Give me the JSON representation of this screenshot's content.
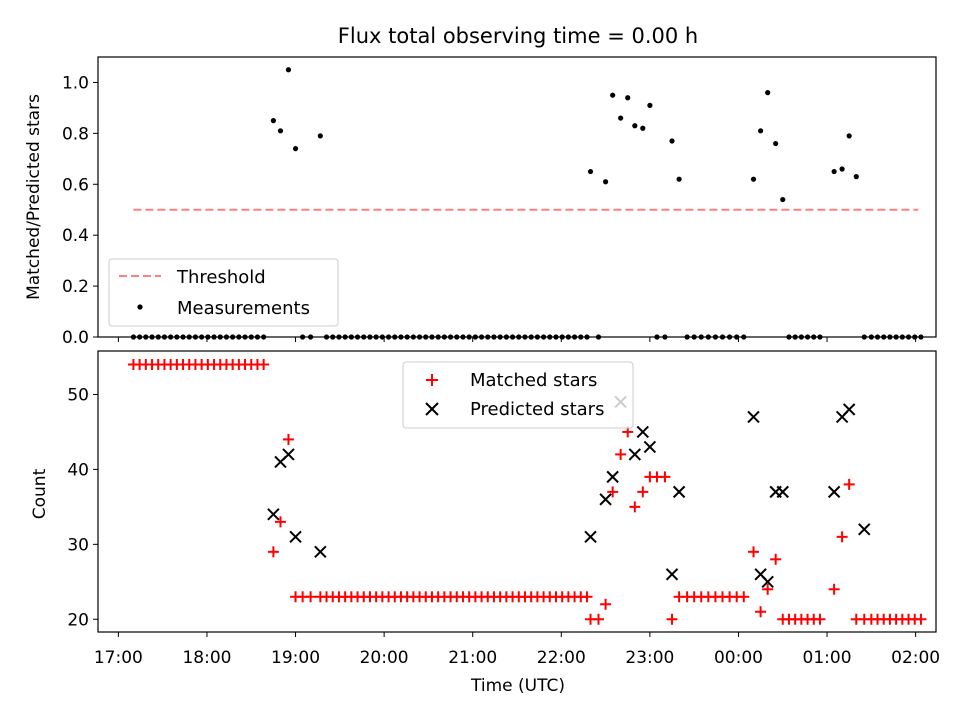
{
  "title": "Flux total observing time = 0.00 h",
  "chart_data": [
    {
      "type": "scatter",
      "ylabel": "Matched/Predicted stars",
      "ylim": [
        0,
        1.1
      ],
      "yticks": [
        0.0,
        0.2,
        0.4,
        0.6,
        0.8,
        1.0
      ],
      "ytick_labels": [
        "0.0",
        "0.2",
        "0.4",
        "0.6",
        "0.8",
        "1.0"
      ],
      "xlim": [
        -0.23,
        9.23
      ],
      "grid": false,
      "legend_position": "lower-left",
      "threshold": {
        "name": "Threshold",
        "value": 0.5,
        "x": [
          0.17,
          9.03
        ],
        "color": "#ff7f7f",
        "style": "dashed"
      },
      "series": [
        {
          "name": "Measurements",
          "color": "#000000",
          "marker": "dot",
          "x": [
            0.17,
            0.24,
            0.31,
            0.38,
            0.45,
            0.52,
            0.59,
            0.66,
            0.73,
            0.8,
            0.87,
            0.94,
            1.01,
            1.08,
            1.15,
            1.22,
            1.29,
            1.36,
            1.43,
            1.5,
            1.57,
            1.64,
            1.75,
            1.83,
            1.92,
            2.0,
            2.08,
            2.17,
            2.28,
            2.35,
            2.42,
            2.49,
            2.56,
            2.63,
            2.7,
            2.77,
            2.84,
            2.91,
            2.98,
            3.05,
            3.12,
            3.19,
            3.26,
            3.33,
            3.4,
            3.47,
            3.54,
            3.61,
            3.68,
            3.75,
            3.82,
            3.89,
            3.96,
            4.03,
            4.1,
            4.17,
            4.24,
            4.31,
            4.38,
            4.45,
            4.52,
            4.59,
            4.66,
            4.73,
            4.8,
            4.87,
            4.94,
            5.01,
            5.08,
            5.15,
            5.22,
            5.29,
            5.33,
            5.42,
            5.5,
            5.58,
            5.67,
            5.75,
            5.83,
            5.92,
            6.0,
            6.08,
            6.17,
            6.25,
            6.33,
            6.42,
            6.5,
            6.58,
            6.66,
            6.74,
            6.82,
            6.9,
            6.98,
            7.06,
            7.17,
            7.25,
            7.33,
            7.42,
            7.5,
            7.57,
            7.64,
            7.71,
            7.78,
            7.85,
            7.92,
            8.08,
            8.17,
            8.25,
            8.33,
            8.42,
            8.5,
            8.57,
            8.64,
            8.71,
            8.78,
            8.85,
            8.92,
            8.99,
            9.06
          ],
          "y": [
            0,
            0,
            0,
            0,
            0,
            0,
            0,
            0,
            0,
            0,
            0,
            0,
            0,
            0,
            0,
            0,
            0,
            0,
            0,
            0,
            0,
            0,
            0.85,
            0.81,
            1.05,
            0.74,
            0,
            0,
            0.79,
            0,
            0,
            0,
            0,
            0,
            0,
            0,
            0,
            0,
            0,
            0,
            0,
            0,
            0,
            0,
            0,
            0,
            0,
            0,
            0,
            0,
            0,
            0,
            0,
            0,
            0,
            0,
            0,
            0,
            0,
            0,
            0,
            0,
            0,
            0,
            0,
            0,
            0,
            0,
            0,
            0,
            0,
            0,
            0.65,
            0,
            0.61,
            0.95,
            0.86,
            0.94,
            0.83,
            0.82,
            0.91,
            0,
            0,
            0.77,
            0.62,
            0,
            0,
            0,
            0,
            0,
            0,
            0,
            0,
            0,
            0.62,
            0.81,
            0.96,
            0.76,
            0.54,
            0,
            0,
            0,
            0,
            0,
            0,
            0.65,
            0.66,
            0.79,
            0.63,
            0,
            0,
            0,
            0,
            0,
            0,
            0,
            0,
            0,
            0
          ]
        }
      ]
    },
    {
      "type": "scatter",
      "xlabel": "Time (UTC)",
      "ylabel": "Count",
      "ylim": [
        18.3,
        55.8
      ],
      "yticks": [
        20,
        30,
        40,
        50
      ],
      "ytick_labels": [
        "20",
        "30",
        "40",
        "50"
      ],
      "xlim": [
        -0.23,
        9.23
      ],
      "xticks": [
        0,
        1,
        2,
        3,
        4,
        5,
        6,
        7,
        8,
        9
      ],
      "xtick_labels": [
        "17:00",
        "18:00",
        "19:00",
        "20:00",
        "21:00",
        "22:00",
        "23:00",
        "00:00",
        "01:00",
        "02:00"
      ],
      "grid": false,
      "legend_position": "upper-center",
      "series": [
        {
          "name": "Matched stars",
          "color": "#ff0000",
          "marker": "plus",
          "x": [
            0.17,
            0.24,
            0.31,
            0.38,
            0.45,
            0.52,
            0.59,
            0.66,
            0.73,
            0.8,
            0.87,
            0.94,
            1.01,
            1.08,
            1.15,
            1.22,
            1.29,
            1.36,
            1.43,
            1.5,
            1.57,
            1.64,
            1.75,
            1.83,
            1.92,
            2.0,
            2.08,
            2.17,
            2.28,
            2.35,
            2.42,
            2.49,
            2.56,
            2.63,
            2.7,
            2.77,
            2.84,
            2.91,
            2.98,
            3.05,
            3.12,
            3.19,
            3.26,
            3.33,
            3.4,
            3.47,
            3.54,
            3.61,
            3.68,
            3.75,
            3.82,
            3.89,
            3.96,
            4.03,
            4.1,
            4.17,
            4.24,
            4.31,
            4.38,
            4.45,
            4.52,
            4.59,
            4.66,
            4.73,
            4.8,
            4.87,
            4.94,
            5.01,
            5.08,
            5.15,
            5.22,
            5.29,
            5.33,
            5.42,
            5.5,
            5.58,
            5.67,
            5.75,
            5.83,
            5.92,
            6.0,
            6.08,
            6.17,
            6.25,
            6.33,
            6.42,
            6.5,
            6.58,
            6.66,
            6.74,
            6.82,
            6.9,
            6.98,
            7.06,
            7.17,
            7.25,
            7.33,
            7.42,
            7.5,
            7.57,
            7.64,
            7.71,
            7.78,
            7.85,
            7.92,
            8.08,
            8.17,
            8.25,
            8.33,
            8.42,
            8.5,
            8.57,
            8.64,
            8.71,
            8.78,
            8.85,
            8.92,
            8.99,
            9.06
          ],
          "y": [
            54,
            54,
            54,
            54,
            54,
            54,
            54,
            54,
            54,
            54,
            54,
            54,
            54,
            54,
            54,
            54,
            54,
            54,
            54,
            54,
            54,
            54,
            29,
            33,
            44,
            23,
            23,
            23,
            23,
            23,
            23,
            23,
            23,
            23,
            23,
            23,
            23,
            23,
            23,
            23,
            23,
            23,
            23,
            23,
            23,
            23,
            23,
            23,
            23,
            23,
            23,
            23,
            23,
            23,
            23,
            23,
            23,
            23,
            23,
            23,
            23,
            23,
            23,
            23,
            23,
            23,
            23,
            23,
            23,
            23,
            23,
            23,
            20,
            20,
            22,
            37,
            42,
            45,
            35,
            37,
            39,
            39,
            39,
            20,
            23,
            23,
            23,
            23,
            23,
            23,
            23,
            23,
            23,
            23,
            29,
            21,
            24,
            28,
            20,
            20,
            20,
            20,
            20,
            20,
            20,
            24,
            31,
            38,
            20,
            20,
            20,
            20,
            20,
            20,
            20,
            20,
            20,
            20,
            20
          ]
        },
        {
          "name": "Predicted stars",
          "color": "#000000",
          "marker": "x",
          "x": [
            1.75,
            1.83,
            1.92,
            2.0,
            2.28,
            5.33,
            5.5,
            5.58,
            5.67,
            5.83,
            5.92,
            6.0,
            6.25,
            6.33,
            7.17,
            7.25,
            7.33,
            7.42,
            7.5,
            8.08,
            8.17,
            8.25,
            8.42
          ],
          "y": [
            34,
            41,
            42,
            31,
            29,
            31,
            36,
            39,
            49,
            42,
            45,
            43,
            26,
            37,
            47,
            26,
            25,
            37,
            37,
            37,
            47,
            48,
            32
          ]
        }
      ]
    }
  ]
}
